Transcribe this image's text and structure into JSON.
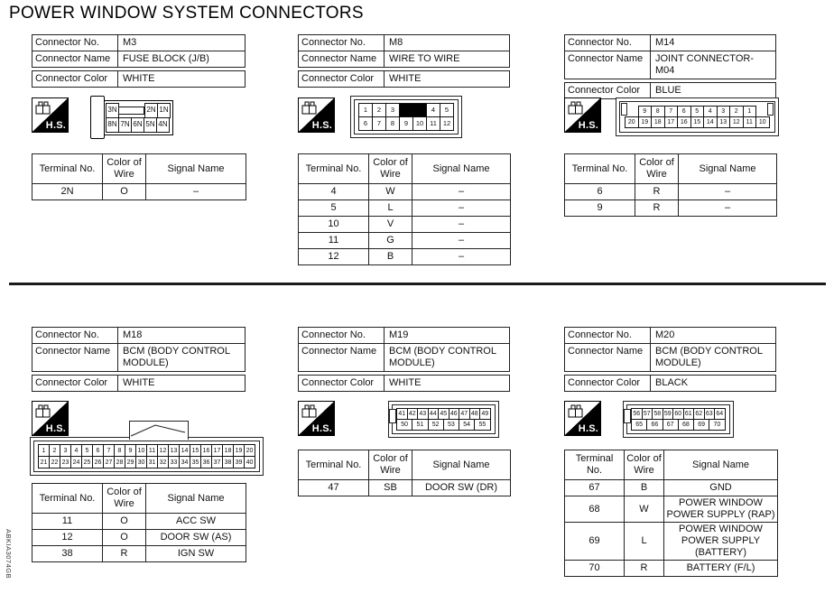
{
  "title": "POWER WINDOW SYSTEM CONNECTORS",
  "figure_id": "ABKIA3074GB",
  "labels": {
    "connector_no": "Connector No.",
    "connector_name": "Connector Name",
    "connector_color": "Connector Color",
    "terminal_no": "Terminal No.",
    "color_of_wire": "Color of Wire",
    "signal_name": "Signal Name",
    "hs": "H.S."
  },
  "connectors": [
    {
      "no": "M3",
      "name": "FUSE BLOCK (J/B)",
      "color": "WHITE",
      "pins": {
        "top": [
          "3N",
          "",
          "2N",
          "1N"
        ],
        "bottom": [
          "8N",
          "7N",
          "6N",
          "5N",
          "4N"
        ]
      },
      "terminals": [
        {
          "no": "2N",
          "wire": "O",
          "signal": "–"
        }
      ]
    },
    {
      "no": "M8",
      "name": "WIRE TO WIRE",
      "color": "WHITE",
      "pins": {
        "top": [
          "1",
          "2",
          "3",
          "",
          "4",
          "5"
        ],
        "bottom": [
          "6",
          "7",
          "8",
          "9",
          "10",
          "11",
          "12"
        ]
      },
      "terminals": [
        {
          "no": "4",
          "wire": "W",
          "signal": "–"
        },
        {
          "no": "5",
          "wire": "L",
          "signal": "–"
        },
        {
          "no": "10",
          "wire": "V",
          "signal": "–"
        },
        {
          "no": "11",
          "wire": "G",
          "signal": "–"
        },
        {
          "no": "12",
          "wire": "B",
          "signal": "–"
        }
      ]
    },
    {
      "no": "M14",
      "name": "JOINT CONNECTOR-M04",
      "color": "BLUE",
      "pins": {
        "top": [
          "9",
          "8",
          "7",
          "6",
          "5",
          "4",
          "3",
          "2",
          "1"
        ],
        "bottom": [
          "20",
          "19",
          "18",
          "17",
          "16",
          "15",
          "14",
          "13",
          "12",
          "11",
          "10"
        ]
      },
      "terminals": [
        {
          "no": "6",
          "wire": "R",
          "signal": "–"
        },
        {
          "no": "9",
          "wire": "R",
          "signal": "–"
        }
      ]
    },
    {
      "no": "M18",
      "name": "BCM (BODY CONTROL MODULE)",
      "color": "WHITE",
      "pins": {
        "top": [
          "1",
          "2",
          "3",
          "4",
          "5",
          "6",
          "7",
          "8",
          "9",
          "10",
          "11",
          "12",
          "13",
          "14",
          "15",
          "16",
          "17",
          "18",
          "19",
          "20"
        ],
        "bottom": [
          "21",
          "22",
          "23",
          "24",
          "25",
          "26",
          "27",
          "28",
          "29",
          "30",
          "31",
          "32",
          "33",
          "34",
          "35",
          "36",
          "37",
          "38",
          "39",
          "40"
        ]
      },
      "terminals": [
        {
          "no": "11",
          "wire": "O",
          "signal": "ACC SW"
        },
        {
          "no": "12",
          "wire": "O",
          "signal": "DOOR SW (AS)"
        },
        {
          "no": "38",
          "wire": "R",
          "signal": "IGN SW"
        }
      ]
    },
    {
      "no": "M19",
      "name": "BCM (BODY CONTROL MODULE)",
      "color": "WHITE",
      "pins": {
        "top": [
          "41",
          "42",
          "43",
          "44",
          "45",
          "46",
          "47",
          "48",
          "49"
        ],
        "bottom": [
          "50",
          "51",
          "52",
          "53",
          "54",
          "55"
        ]
      },
      "terminals": [
        {
          "no": "47",
          "wire": "SB",
          "signal": "DOOR SW (DR)"
        }
      ]
    },
    {
      "no": "M20",
      "name": "BCM (BODY CONTROL MODULE)",
      "color": "BLACK",
      "pins": {
        "top": [
          "56",
          "57",
          "58",
          "59",
          "60",
          "61",
          "62",
          "63",
          "64"
        ],
        "bottom": [
          "65",
          "66",
          "67",
          "68",
          "69",
          "70"
        ]
      },
      "terminals": [
        {
          "no": "67",
          "wire": "B",
          "signal": "GND"
        },
        {
          "no": "68",
          "wire": "W",
          "signal": "POWER WINDOW POWER SUPPLY (RAP)"
        },
        {
          "no": "69",
          "wire": "L",
          "signal": "POWER WINDOW POWER SUPPLY (BATTERY)"
        },
        {
          "no": "70",
          "wire": "R",
          "signal": "BATTERY (F/L)"
        }
      ]
    }
  ]
}
